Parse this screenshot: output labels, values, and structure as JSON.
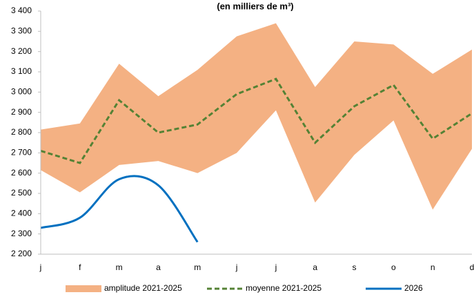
{
  "chart_data": {
    "type": "line",
    "title": "(en milliers de m³)",
    "categories": [
      "j",
      "f",
      "m",
      "a",
      "m",
      "j",
      "j",
      "a",
      "s",
      "o",
      "n",
      "d"
    ],
    "ylim": [
      2200,
      3400
    ],
    "yticks": [
      {
        "value": 2200,
        "label": "2 200"
      },
      {
        "value": 2300,
        "label": "2 300"
      },
      {
        "value": 2400,
        "label": "2 400"
      },
      {
        "value": 2500,
        "label": "2 500"
      },
      {
        "value": 2600,
        "label": "2 600"
      },
      {
        "value": 2700,
        "label": "2 700"
      },
      {
        "value": 2800,
        "label": "2 800"
      },
      {
        "value": 2900,
        "label": "2 900"
      },
      {
        "value": 3000,
        "label": "3 000"
      },
      {
        "value": 3100,
        "label": "3 100"
      },
      {
        "value": 3200,
        "label": "3 200"
      },
      {
        "value": 3300,
        "label": "3 300"
      },
      {
        "value": 3400,
        "label": "3 400"
      }
    ],
    "grid": false,
    "legend": "bottom",
    "series": [
      {
        "name": "amplitude 2021-2025",
        "color": "#f4b183",
        "style": "band",
        "low": [
          2615,
          2505,
          2640,
          2660,
          2600,
          2700,
          2910,
          2455,
          2690,
          2860,
          2420,
          2720
        ],
        "high": [
          2815,
          2845,
          3140,
          2980,
          3110,
          3275,
          3340,
          3025,
          3250,
          3235,
          3090,
          3210
        ]
      },
      {
        "name": "moyenne 2021-2025",
        "color": "#548235",
        "style": "dashed",
        "values": [
          2710,
          2650,
          2960,
          2800,
          2840,
          2990,
          3065,
          2750,
          2930,
          3035,
          2770,
          2895
        ]
      },
      {
        "name": "2026",
        "color": "#0070c0",
        "style": "smooth",
        "values": [
          2330,
          2380,
          2570,
          2540,
          2260,
          null,
          null,
          null,
          null,
          null,
          null,
          null
        ]
      }
    ]
  }
}
